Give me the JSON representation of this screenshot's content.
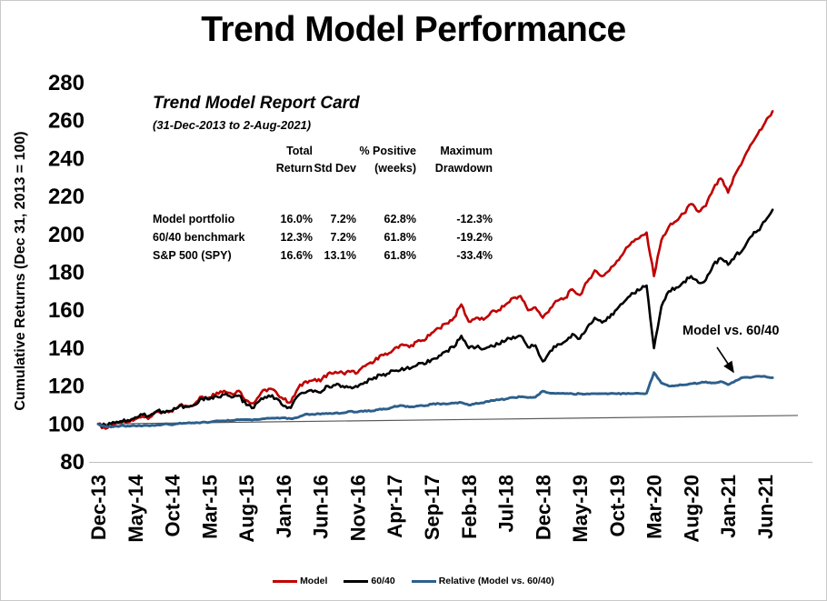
{
  "title": "Trend Model Performance",
  "report_card": {
    "title": "Trend Model Report Card",
    "subtitle": "(31-Dec-2013 to 2-Aug-2021)",
    "columns": [
      {
        "line1": "Total",
        "line2": "Return"
      },
      {
        "line1": "",
        "line2": "Std Dev"
      },
      {
        "line1": "% Positive",
        "line2": "(weeks)"
      },
      {
        "line1": "Maximum",
        "line2": "Drawdown"
      }
    ],
    "rows": [
      {
        "label": "Model portfolio",
        "values": [
          "16.0%",
          "7.2%",
          "62.8%",
          "-12.3%"
        ]
      },
      {
        "label": "60/40 benchmark",
        "values": [
          "12.3%",
          "7.2%",
          "61.8%",
          "-19.2%"
        ]
      },
      {
        "label": "S&P 500 (SPY)",
        "values": [
          "16.6%",
          "13.1%",
          "61.8%",
          "-33.4%"
        ]
      }
    ]
  },
  "annotation": {
    "text": "Model vs. 60/40"
  },
  "chart_data": {
    "type": "line",
    "title": "Trend Model Performance",
    "xlabel": "",
    "ylabel": "Cumulative Returns (Dec 31, 2013 = 100)",
    "ylim": [
      80,
      280
    ],
    "ytick_step": 20,
    "grid": false,
    "legend_position": "bottom",
    "x_unit": "monthly samples, Dec-2013 through Jul-2021 (92 points)",
    "tick_every": 5,
    "x_tick_labels": [
      "Dec-13",
      "May-14",
      "Oct-14",
      "Mar-15",
      "Aug-15",
      "Jan-16",
      "Jun-16",
      "Nov-16",
      "Apr-17",
      "Sep-17",
      "Feb-18",
      "Jul-18",
      "Dec-18",
      "May-19",
      "Oct-19",
      "Mar-20",
      "Aug-20",
      "Jan-21",
      "Jun-21"
    ],
    "series": [
      {
        "name": "Model",
        "color": "#C00000",
        "values": [
          100,
          97.5,
          99.5,
          100.5,
          101,
          102.5,
          104,
          103.5,
          106.5,
          106,
          106.5,
          110,
          109.5,
          110.5,
          114.5,
          114,
          116.5,
          117.5,
          116,
          117.5,
          112.5,
          111,
          116.5,
          118.5,
          117,
          113,
          111.5,
          119,
          122.5,
          123,
          122.5,
          126.5,
          127.5,
          127,
          127.5,
          127,
          130.5,
          132,
          136,
          136.5,
          140,
          142,
          140.5,
          143.5,
          144,
          148,
          150.5,
          153,
          156,
          163,
          154,
          156,
          155,
          159,
          160,
          163,
          166.5,
          167.5,
          160,
          161.5,
          156,
          161,
          165,
          166.5,
          171,
          168,
          175,
          181,
          178,
          181,
          186,
          191,
          196,
          198,
          201,
          178,
          197,
          204,
          207,
          211,
          216,
          212,
          215,
          224,
          229.5,
          222,
          232,
          239,
          247,
          253,
          259,
          265
        ]
      },
      {
        "name": "60/40",
        "color": "#000000",
        "values": [
          100,
          99,
          101,
          101.5,
          102,
          103.5,
          105,
          104.5,
          107,
          106,
          107,
          109.5,
          109,
          110,
          113.5,
          113,
          114.5,
          115.5,
          114,
          115,
          110,
          108.5,
          113.5,
          115,
          113.5,
          109.5,
          108.5,
          115,
          116.5,
          117,
          116.5,
          120,
          120.5,
          120,
          119.5,
          119.5,
          122,
          123.5,
          126,
          126.5,
          128,
          129.5,
          129,
          131,
          131.5,
          134,
          136,
          138.5,
          140.5,
          146.5,
          140,
          140.5,
          139.5,
          141.5,
          142,
          144,
          146,
          146.5,
          140.5,
          141.5,
          133,
          138.5,
          142,
          143.5,
          147.5,
          145,
          151,
          156,
          153.5,
          156,
          160.5,
          164.5,
          169,
          170.5,
          173,
          140,
          162,
          170,
          172,
          175,
          178,
          174.5,
          176,
          184,
          187.5,
          184,
          189,
          192,
          198.5,
          202,
          207,
          213
        ]
      },
      {
        "name": "Relative (Model vs. 60/40)",
        "color": "#2D5F8B",
        "values": [
          100,
          98.5,
          98.5,
          99,
          99,
          99,
          99,
          99,
          99.5,
          100,
          99.5,
          100.5,
          100.5,
          100.5,
          100.9,
          100.9,
          101.7,
          101.7,
          101.8,
          102.2,
          102.3,
          102.3,
          102.6,
          103,
          103.1,
          103.2,
          102.8,
          103.5,
          105.2,
          105.1,
          105.2,
          105.4,
          105.8,
          105.8,
          106.7,
          106.3,
          107,
          106.9,
          107.9,
          107.9,
          109.4,
          109.7,
          108.9,
          109.5,
          109.5,
          110.4,
          110.7,
          110.5,
          111,
          111.3,
          110,
          111,
          111.1,
          112.4,
          112.7,
          113.2,
          114,
          114.3,
          113.9,
          114.1,
          117.3,
          116.2,
          116.2,
          116,
          115.9,
          115.9,
          115.9,
          116,
          116,
          116,
          115.9,
          116.1,
          116,
          116.1,
          116.2,
          127.1,
          121.6,
          120,
          120.3,
          120.6,
          121.3,
          121.5,
          122.2,
          121.7,
          122.4,
          120.7,
          122.8,
          124.5,
          124.4,
          125.2,
          125.1,
          124.4
        ]
      }
    ],
    "baseline": {
      "name": "reference line",
      "color": "#595959",
      "start": 100,
      "end": 104.5
    }
  }
}
